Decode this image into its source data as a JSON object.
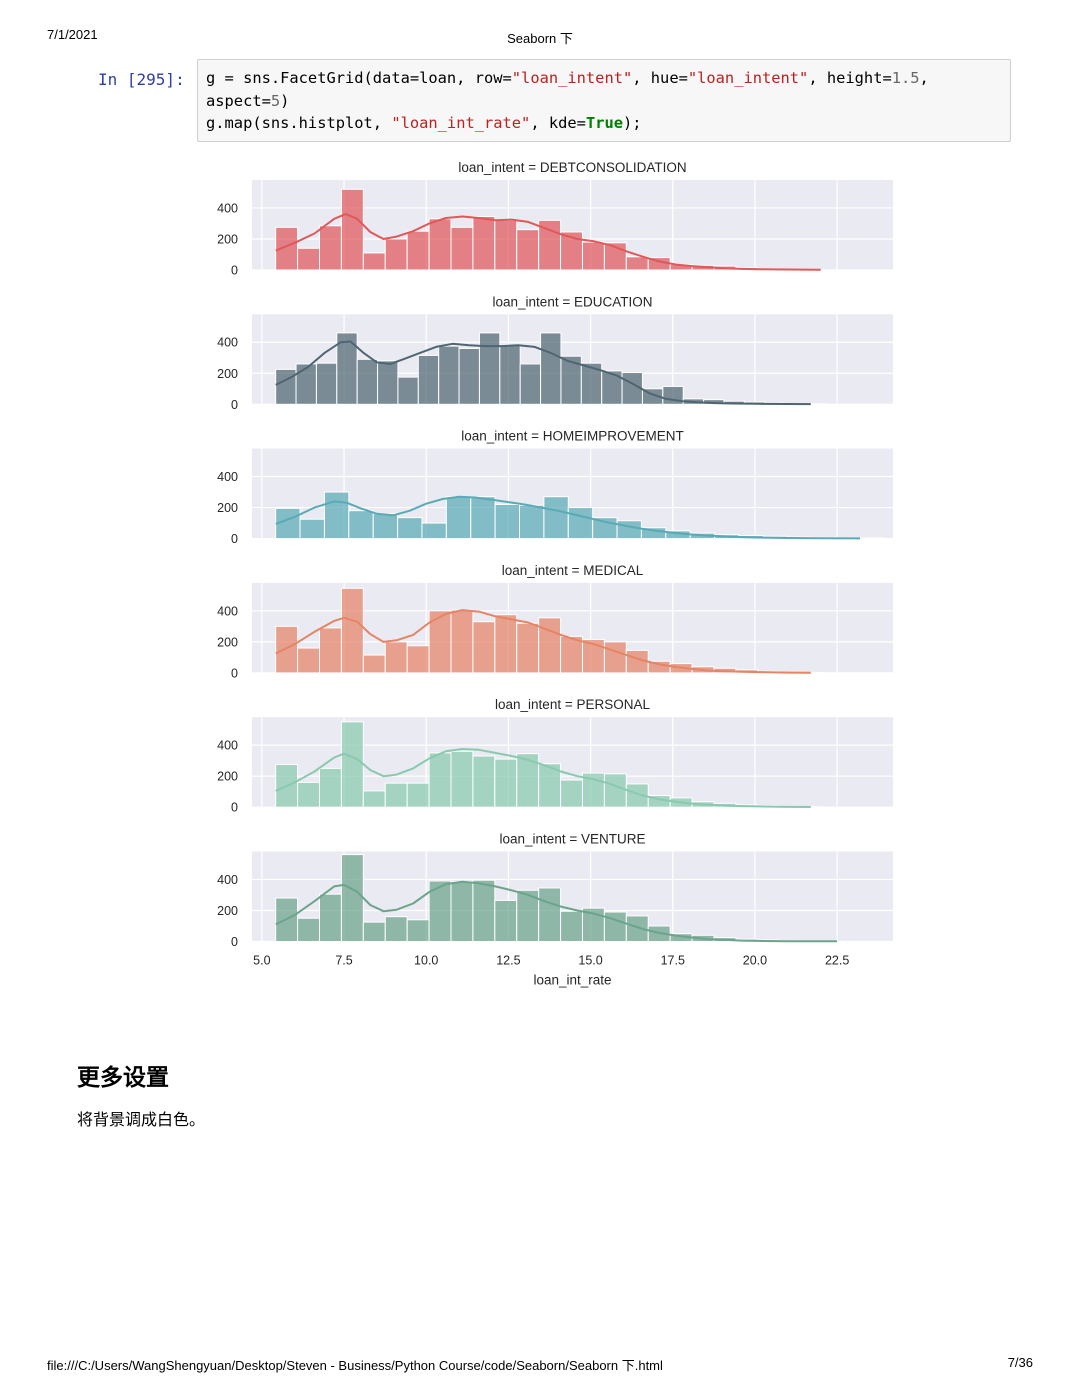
{
  "header": {
    "date": "7/1/2021",
    "title": "Seaborn 下"
  },
  "cell": {
    "prompt": "In [295]:",
    "code_lines": [
      [
        [
          "t",
          "g = sns.FacetGrid(data=loan, row="
        ],
        [
          "s",
          "\"loan_intent\""
        ],
        [
          "t",
          ", hue="
        ],
        [
          "s",
          "\"loan_intent\""
        ],
        [
          "t",
          ", height="
        ],
        [
          "n",
          "1.5"
        ],
        [
          "t",
          ","
        ]
      ],
      [
        [
          "t",
          "aspect="
        ],
        [
          "n",
          "5"
        ],
        [
          "t",
          ")"
        ]
      ],
      [
        [
          "t",
          "g.map(sns.histplot, "
        ],
        [
          "s",
          "\"loan_int_rate\""
        ],
        [
          "t",
          ", kde="
        ],
        [
          "k",
          "True"
        ],
        [
          "t",
          ");"
        ]
      ]
    ]
  },
  "chart_data": {
    "type": "bar",
    "kind": "faceted histogram with kde",
    "xlabel": "loan_int_rate",
    "xlim": [
      4.7,
      24.2
    ],
    "xticks": [
      "5.0",
      "7.5",
      "10.0",
      "12.5",
      "15.0",
      "17.5",
      "20.0",
      "22.5"
    ],
    "xtick_values": [
      5.0,
      7.5,
      10.0,
      12.5,
      15.0,
      17.5,
      20.0,
      22.5
    ],
    "ylim": [
      0,
      580
    ],
    "yticks": [
      "0",
      "200",
      "400"
    ],
    "ytick_values": [
      0,
      200,
      400
    ],
    "grid": true,
    "background": "#eaeaf2",
    "facets": [
      {
        "title": "loan_intent = DEBTCONSOLIDATION",
        "color": "#e1575a",
        "bin_start": 5.42,
        "bin_width": 0.6667,
        "counts": [
          275,
          140,
          285,
          520,
          110,
          200,
          250,
          330,
          275,
          345,
          320,
          260,
          320,
          245,
          180,
          175,
          85,
          80,
          35,
          30,
          25,
          15,
          8,
          5,
          3
        ],
        "kde": [
          [
            5.42,
            125
          ],
          [
            6.0,
            175
          ],
          [
            6.6,
            235
          ],
          [
            7.2,
            330
          ],
          [
            7.55,
            360
          ],
          [
            7.9,
            330
          ],
          [
            8.3,
            245
          ],
          [
            8.7,
            200
          ],
          [
            9.1,
            215
          ],
          [
            9.6,
            250
          ],
          [
            10.1,
            300
          ],
          [
            10.6,
            335
          ],
          [
            11.1,
            345
          ],
          [
            11.6,
            335
          ],
          [
            12.1,
            320
          ],
          [
            12.6,
            325
          ],
          [
            13.1,
            310
          ],
          [
            13.6,
            270
          ],
          [
            14.1,
            230
          ],
          [
            14.6,
            200
          ],
          [
            15.1,
            185
          ],
          [
            15.6,
            160
          ],
          [
            16.1,
            120
          ],
          [
            16.6,
            85
          ],
          [
            17.1,
            55
          ],
          [
            17.6,
            35
          ],
          [
            18.1,
            25
          ],
          [
            18.6,
            18
          ],
          [
            19.1,
            10
          ],
          [
            19.6,
            7
          ],
          [
            20.1,
            5
          ],
          [
            21,
            3
          ],
          [
            22,
            2
          ]
        ]
      },
      {
        "title": "loan_intent = EDUCATION",
        "color": "#4f6672",
        "bin_start": 5.42,
        "bin_width": 0.6199,
        "counts": [
          225,
          260,
          265,
          460,
          290,
          280,
          175,
          315,
          375,
          360,
          460,
          380,
          260,
          460,
          310,
          265,
          215,
          205,
          100,
          115,
          35,
          30,
          20,
          15,
          8,
          5,
          3
        ],
        "kde": [
          [
            5.42,
            125
          ],
          [
            5.9,
            175
          ],
          [
            6.4,
            240
          ],
          [
            6.9,
            330
          ],
          [
            7.4,
            400
          ],
          [
            7.7,
            405
          ],
          [
            8.1,
            330
          ],
          [
            8.5,
            270
          ],
          [
            8.9,
            260
          ],
          [
            9.3,
            290
          ],
          [
            9.8,
            330
          ],
          [
            10.3,
            370
          ],
          [
            10.8,
            390
          ],
          [
            11.3,
            380
          ],
          [
            11.8,
            375
          ],
          [
            12.3,
            375
          ],
          [
            12.8,
            380
          ],
          [
            13.3,
            370
          ],
          [
            13.8,
            330
          ],
          [
            14.3,
            280
          ],
          [
            14.8,
            250
          ],
          [
            15.3,
            220
          ],
          [
            15.8,
            185
          ],
          [
            16.3,
            130
          ],
          [
            16.8,
            70
          ],
          [
            17.3,
            35
          ],
          [
            17.8,
            20
          ],
          [
            18.3,
            12
          ],
          [
            18.8,
            8
          ],
          [
            19.3,
            5
          ],
          [
            20,
            3
          ],
          [
            21,
            2
          ],
          [
            21.7,
            1
          ]
        ]
      },
      {
        "title": "loan_intent = HOMEIMPROVEMENT",
        "color": "#5aaab6",
        "bin_start": 5.42,
        "bin_width": 0.7418,
        "counts": [
          195,
          125,
          300,
          180,
          160,
          135,
          100,
          270,
          270,
          220,
          215,
          270,
          200,
          135,
          115,
          70,
          50,
          35,
          25,
          20,
          15,
          10,
          8,
          5,
          3
        ],
        "kde": [
          [
            5.42,
            95
          ],
          [
            6.0,
            140
          ],
          [
            6.6,
            200
          ],
          [
            7.2,
            240
          ],
          [
            7.6,
            230
          ],
          [
            8.0,
            195
          ],
          [
            8.5,
            160
          ],
          [
            9.0,
            150
          ],
          [
            9.5,
            180
          ],
          [
            10.0,
            225
          ],
          [
            10.5,
            255
          ],
          [
            11.0,
            270
          ],
          [
            11.5,
            265
          ],
          [
            12.0,
            250
          ],
          [
            12.5,
            235
          ],
          [
            13.0,
            220
          ],
          [
            13.5,
            200
          ],
          [
            14.0,
            180
          ],
          [
            14.5,
            155
          ],
          [
            15.0,
            130
          ],
          [
            15.5,
            105
          ],
          [
            16.0,
            85
          ],
          [
            16.5,
            65
          ],
          [
            17.0,
            50
          ],
          [
            17.5,
            38
          ],
          [
            18.0,
            28
          ],
          [
            18.5,
            20
          ],
          [
            19.0,
            15
          ],
          [
            19.5,
            10
          ],
          [
            20.0,
            7
          ],
          [
            21,
            4
          ],
          [
            22,
            2
          ],
          [
            23.2,
            1
          ]
        ]
      },
      {
        "title": "loan_intent = MEDICAL",
        "color": "#e68466",
        "bin_start": 5.42,
        "bin_width": 0.6667,
        "counts": [
          300,
          160,
          290,
          545,
          115,
          200,
          175,
          400,
          405,
          330,
          375,
          320,
          355,
          235,
          215,
          200,
          145,
          75,
          60,
          40,
          30,
          20,
          10,
          5,
          3
        ],
        "kde": [
          [
            5.42,
            125
          ],
          [
            6.0,
            185
          ],
          [
            6.6,
            265
          ],
          [
            7.2,
            335
          ],
          [
            7.5,
            355
          ],
          [
            7.9,
            330
          ],
          [
            8.3,
            250
          ],
          [
            8.7,
            200
          ],
          [
            9.1,
            210
          ],
          [
            9.6,
            245
          ],
          [
            10.1,
            325
          ],
          [
            10.6,
            380
          ],
          [
            11.1,
            405
          ],
          [
            11.6,
            395
          ],
          [
            12.1,
            365
          ],
          [
            12.6,
            345
          ],
          [
            13.1,
            325
          ],
          [
            13.6,
            285
          ],
          [
            14.1,
            245
          ],
          [
            14.6,
            210
          ],
          [
            15.1,
            185
          ],
          [
            15.6,
            150
          ],
          [
            16.1,
            115
          ],
          [
            16.6,
            80
          ],
          [
            17.1,
            55
          ],
          [
            17.6,
            38
          ],
          [
            18.1,
            25
          ],
          [
            18.6,
            15
          ],
          [
            19.1,
            10
          ],
          [
            19.6,
            7
          ],
          [
            20.1,
            5
          ],
          [
            21,
            2
          ],
          [
            21.7,
            1
          ]
        ]
      },
      {
        "title": "loan_intent = PERSONAL",
        "color": "#89caaf",
        "bin_start": 5.42,
        "bin_width": 0.6667,
        "counts": [
          275,
          160,
          250,
          550,
          105,
          155,
          155,
          350,
          360,
          330,
          310,
          345,
          280,
          175,
          220,
          215,
          150,
          75,
          60,
          35,
          25,
          15,
          10,
          5,
          3
        ],
        "kde": [
          [
            5.42,
            105
          ],
          [
            6.0,
            160
          ],
          [
            6.6,
            230
          ],
          [
            7.2,
            320
          ],
          [
            7.5,
            345
          ],
          [
            7.9,
            310
          ],
          [
            8.3,
            240
          ],
          [
            8.7,
            200
          ],
          [
            9.1,
            210
          ],
          [
            9.6,
            250
          ],
          [
            10.1,
            315
          ],
          [
            10.6,
            360
          ],
          [
            11.1,
            375
          ],
          [
            11.6,
            370
          ],
          [
            12.1,
            350
          ],
          [
            12.6,
            330
          ],
          [
            13.1,
            305
          ],
          [
            13.6,
            270
          ],
          [
            14.1,
            230
          ],
          [
            14.6,
            200
          ],
          [
            15.1,
            180
          ],
          [
            15.6,
            150
          ],
          [
            16.1,
            110
          ],
          [
            16.6,
            75
          ],
          [
            17.1,
            50
          ],
          [
            17.6,
            35
          ],
          [
            18.1,
            22
          ],
          [
            18.6,
            15
          ],
          [
            19.1,
            10
          ],
          [
            19.6,
            7
          ],
          [
            20.1,
            5
          ],
          [
            21,
            2
          ],
          [
            21.7,
            1
          ]
        ]
      },
      {
        "title": "loan_intent = VENTURE",
        "color": "#6ca48b",
        "bin_start": 5.42,
        "bin_width": 0.6667,
        "counts": [
          280,
          150,
          305,
          560,
          125,
          160,
          140,
          390,
          385,
          395,
          265,
          330,
          345,
          195,
          215,
          190,
          165,
          100,
          50,
          40,
          25,
          15,
          10,
          5,
          3
        ],
        "kde": [
          [
            5.42,
            110
          ],
          [
            6.0,
            170
          ],
          [
            6.6,
            260
          ],
          [
            7.2,
            355
          ],
          [
            7.5,
            365
          ],
          [
            7.9,
            320
          ],
          [
            8.3,
            235
          ],
          [
            8.7,
            195
          ],
          [
            9.1,
            205
          ],
          [
            9.6,
            245
          ],
          [
            10.1,
            320
          ],
          [
            10.6,
            370
          ],
          [
            11.1,
            385
          ],
          [
            11.6,
            375
          ],
          [
            12.1,
            355
          ],
          [
            12.6,
            330
          ],
          [
            13.1,
            300
          ],
          [
            13.6,
            260
          ],
          [
            14.1,
            225
          ],
          [
            14.6,
            200
          ],
          [
            15.1,
            180
          ],
          [
            15.6,
            150
          ],
          [
            16.1,
            115
          ],
          [
            16.6,
            80
          ],
          [
            17.1,
            55
          ],
          [
            17.6,
            38
          ],
          [
            18.1,
            25
          ],
          [
            18.6,
            15
          ],
          [
            19.1,
            10
          ],
          [
            19.6,
            6
          ],
          [
            20.1,
            4
          ],
          [
            21,
            2
          ],
          [
            22.5,
            1
          ]
        ]
      }
    ]
  },
  "section": {
    "title": "更多设置",
    "text": "将背景调成白色。"
  },
  "footer": {
    "path": "file:///C:/Users/WangShengyuan/Desktop/Steven - Business/Python Course/code/Seaborn/Seaborn 下.html",
    "page": "7/36"
  }
}
